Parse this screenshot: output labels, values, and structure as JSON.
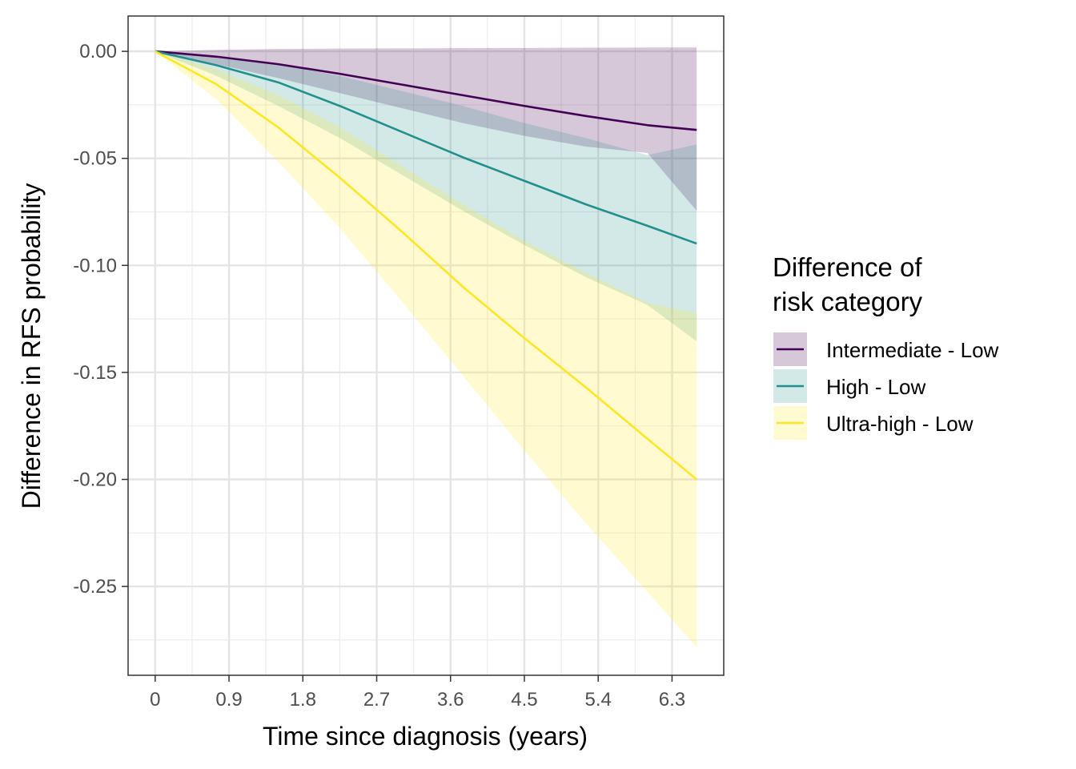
{
  "chart_data": {
    "type": "line",
    "title": "",
    "xlabel": "Time since diagnosis (years)",
    "ylabel": "Difference in RFS probability",
    "xlim": [
      -0.33,
      6.93
    ],
    "ylim": [
      -0.2915,
      0.0165
    ],
    "x_ticks": [
      0,
      0.9,
      1.8,
      2.7,
      3.6,
      4.5,
      5.4,
      6.3
    ],
    "x_tick_labels": [
      "0",
      "0.9",
      "1.8",
      "2.7",
      "3.6",
      "4.5",
      "5.4",
      "6.3"
    ],
    "y_ticks": [
      0,
      -0.05,
      -0.1,
      -0.15,
      -0.2,
      -0.25
    ],
    "y_tick_labels": [
      "0.00",
      "-0.05",
      "-0.10",
      "-0.15",
      "-0.20",
      "-0.25"
    ],
    "grid": true,
    "legend": {
      "title_lines": [
        "Difference of",
        "risk category"
      ],
      "position": "right"
    },
    "series": [
      {
        "name": "Intermediate - Low",
        "color": "#440154",
        "fill_opacity": 0.22,
        "x": [
          0,
          0.75,
          1.5,
          2.25,
          3.0,
          3.75,
          4.5,
          5.25,
          6.0,
          6.6
        ],
        "y": [
          0,
          -0.0025,
          -0.006,
          -0.0105,
          -0.0155,
          -0.0205,
          -0.0255,
          -0.0302,
          -0.0345,
          -0.0367
        ],
        "lower": [
          0,
          -0.006,
          -0.0125,
          -0.0195,
          -0.0265,
          -0.0335,
          -0.0395,
          -0.0445,
          -0.0475,
          -0.0745
        ],
        "upper": [
          0,
          0.0007,
          0.0011,
          0.0013,
          0.0014,
          0.0015,
          0.0016,
          0.0017,
          0.0018,
          0.0018
        ]
      },
      {
        "name": "High - Low",
        "color": "#21908C",
        "fill_opacity": 0.2,
        "x": [
          0,
          0.75,
          1.5,
          2.25,
          3.0,
          3.75,
          4.5,
          5.25,
          6.0,
          6.6
        ],
        "y": [
          0,
          -0.0065,
          -0.0145,
          -0.0255,
          -0.0375,
          -0.0495,
          -0.0605,
          -0.0715,
          -0.0815,
          -0.0898
        ],
        "lower": [
          0,
          -0.0115,
          -0.0255,
          -0.0405,
          -0.0575,
          -0.0745,
          -0.0905,
          -0.1055,
          -0.1185,
          -0.1355
        ],
        "upper": [
          0,
          -0.003,
          -0.006,
          -0.0115,
          -0.0185,
          -0.0255,
          -0.0335,
          -0.0405,
          -0.0485,
          -0.0435
        ]
      },
      {
        "name": "Ultra-high - Low",
        "color": "#FDE725",
        "fill_opacity": 0.22,
        "x": [
          0,
          0.75,
          1.5,
          2.25,
          3.0,
          3.75,
          4.5,
          5.25,
          6.0,
          6.6
        ],
        "y": [
          0,
          -0.0155,
          -0.0355,
          -0.059,
          -0.084,
          -0.11,
          -0.134,
          -0.157,
          -0.181,
          -0.2
        ],
        "lower": [
          0,
          -0.0225,
          -0.0515,
          -0.0825,
          -0.1165,
          -0.1515,
          -0.1865,
          -0.2205,
          -0.2525,
          -0.2785
        ],
        "upper": [
          0,
          -0.0085,
          -0.0205,
          -0.0355,
          -0.0535,
          -0.0715,
          -0.0885,
          -0.1035,
          -0.1175,
          -0.1225
        ]
      }
    ]
  }
}
